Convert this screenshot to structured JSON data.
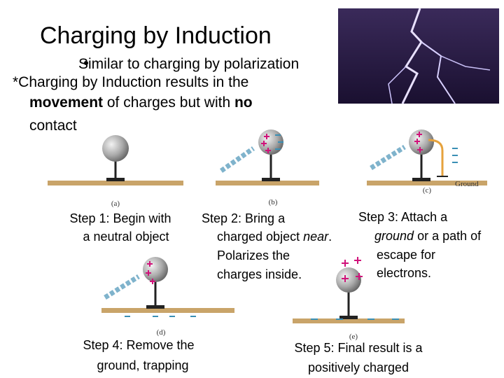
{
  "title": "Charging by Induction",
  "bullet": "Similar to charging by polarization",
  "intro": {
    "line1": "*Charging by Induction results in the",
    "bold1": "movement",
    "mid": " of charges but with ",
    "bold2": "no",
    "end": "contact"
  },
  "figures": {
    "a": "(a)",
    "b": "(b)",
    "c": "(c)",
    "ground": "Ground",
    "d": "(d)",
    "e": "(e)"
  },
  "steps": [
    {
      "lines": [
        "Step 1: Begin with",
        "a neutral object"
      ]
    },
    {
      "lines": [
        "Step 2: Bring a",
        "charged object ",
        "near",
        ".",
        "Polarizes the",
        "charges inside."
      ]
    },
    {
      "lines": [
        "Step 3: Attach a",
        "ground",
        " or a path of",
        "escape for",
        "electrons."
      ]
    },
    {
      "lines": [
        "Step 4: Remove the",
        "ground, trapping"
      ]
    },
    {
      "lines": [
        "Step 5: Final result is a",
        "positively charged"
      ]
    }
  ]
}
